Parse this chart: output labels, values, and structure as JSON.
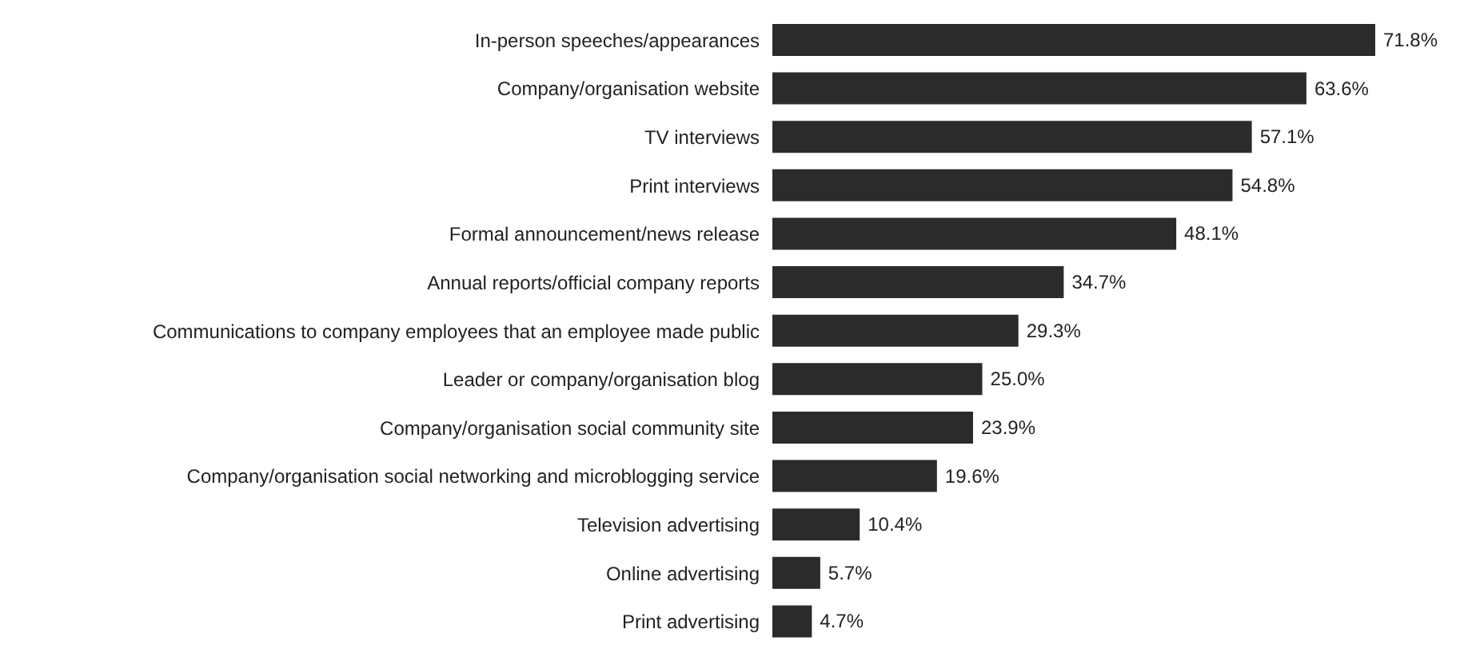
{
  "chart_data": {
    "type": "bar",
    "orientation": "horizontal",
    "categories": [
      "In-person speeches/appearances",
      "Company/organisation website",
      "TV interviews",
      "Print interviews",
      "Formal announcement/news release",
      "Annual reports/official company reports",
      "Communications to company employees that an employee made public",
      "Leader or company/organisation blog",
      "Company/organisation social community site",
      "Company/organisation social networking and microblogging service",
      "Television advertising",
      "Online advertising",
      "Print advertising"
    ],
    "values": [
      71.8,
      63.6,
      57.1,
      54.8,
      48.1,
      34.7,
      29.3,
      25.0,
      23.9,
      19.6,
      10.4,
      5.7,
      4.7
    ],
    "value_labels": [
      "71.8%",
      "63.6%",
      "57.1%",
      "54.8%",
      "48.1%",
      "34.7%",
      "29.3%",
      "25.0%",
      "23.9%",
      "19.6%",
      "10.4%",
      "5.7%",
      "4.7%"
    ],
    "color": "#2b2b2b",
    "tick_labels": "y"
  }
}
